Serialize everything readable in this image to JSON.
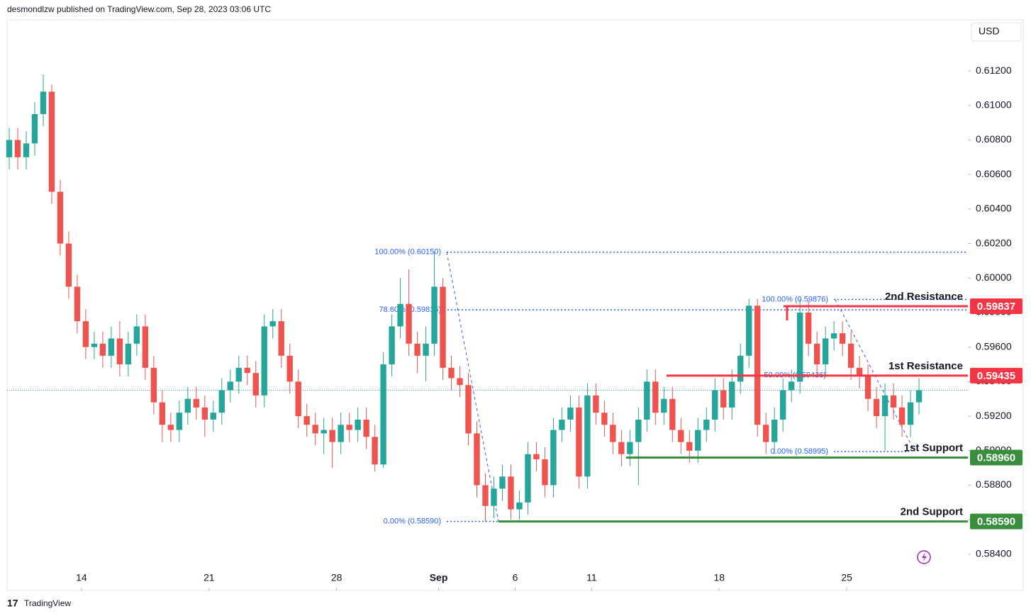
{
  "chart_data": {
    "type": "candlestick",
    "header": "desmondlzw published on TradingView.com, Sep 28, 2023 03:06 UTC",
    "currency": "USD",
    "brand": "TradingView",
    "up_color": "#26a69a",
    "down_color": "#ef5350",
    "xlim": [
      -0.25,
      112.75
    ],
    "xticks": [
      {
        "value": 8.5,
        "label": "14"
      },
      {
        "value": 23.5,
        "label": "21"
      },
      {
        "value": 38.5,
        "label": "28"
      },
      {
        "value": 50.5,
        "label": "Sep"
      },
      {
        "value": 59.5,
        "label": "6"
      },
      {
        "value": 68.5,
        "label": "11"
      },
      {
        "value": 83.5,
        "label": "18"
      },
      {
        "value": 98.5,
        "label": "25"
      }
    ],
    "ylim": [
      0.5819,
      0.61496
    ],
    "yticks": [
      {
        "value": 0.612,
        "label": "0.61200"
      },
      {
        "value": 0.61,
        "label": "0.61000"
      },
      {
        "value": 0.608,
        "label": "0.60800"
      },
      {
        "value": 0.606,
        "label": "0.60600"
      },
      {
        "value": 0.604,
        "label": "0.60400"
      },
      {
        "value": 0.602,
        "label": "0.60200"
      },
      {
        "value": 0.6,
        "label": "0.60000"
      },
      {
        "value": 0.598,
        "label": "0.59800"
      },
      {
        "value": 0.596,
        "label": "0.59600"
      },
      {
        "value": 0.594,
        "label": "0.59400"
      },
      {
        "value": 0.592,
        "label": "0.59200"
      },
      {
        "value": 0.59,
        "label": "0.59000"
      },
      {
        "value": 0.588,
        "label": "0.58800"
      },
      {
        "value": 0.586,
        "label": "0.58600"
      },
      {
        "value": 0.584,
        "label": "0.58400"
      }
    ],
    "last_price": 0.5935,
    "candles": [
      [
        0.607,
        0.6087,
        0.6063,
        0.608
      ],
      [
        0.608,
        0.6087,
        0.6063,
        0.607
      ],
      [
        0.607,
        0.6085,
        0.6063,
        0.6078
      ],
      [
        0.6078,
        0.6102,
        0.6071,
        0.6095
      ],
      [
        0.6095,
        0.6118,
        0.6088,
        0.6108
      ],
      [
        0.6108,
        0.6112,
        0.6043,
        0.605
      ],
      [
        0.605,
        0.6057,
        0.6013,
        0.602
      ],
      [
        0.602,
        0.6027,
        0.5988,
        0.5995
      ],
      [
        0.5995,
        0.6002,
        0.5968,
        0.5975
      ],
      [
        0.5975,
        0.5982,
        0.5953,
        0.596
      ],
      [
        0.596,
        0.5969,
        0.5953,
        0.5962
      ],
      [
        0.5962,
        0.5969,
        0.5948,
        0.5955
      ],
      [
        0.5955,
        0.5972,
        0.5948,
        0.5965
      ],
      [
        0.5965,
        0.5975,
        0.5943,
        0.595
      ],
      [
        0.595,
        0.5969,
        0.5943,
        0.5962
      ],
      [
        0.5962,
        0.5979,
        0.5955,
        0.5972
      ],
      [
        0.5972,
        0.5979,
        0.5941,
        0.5948
      ],
      [
        0.5948,
        0.5955,
        0.5921,
        0.5928
      ],
      [
        0.5928,
        0.5935,
        0.5905,
        0.5915
      ],
      [
        0.5915,
        0.5922,
        0.5905,
        0.5912
      ],
      [
        0.5912,
        0.5929,
        0.5905,
        0.5922
      ],
      [
        0.5922,
        0.5937,
        0.5915,
        0.593
      ],
      [
        0.593,
        0.5937,
        0.5918,
        0.5925
      ],
      [
        0.5925,
        0.5932,
        0.5908,
        0.5918
      ],
      [
        0.5918,
        0.5929,
        0.5911,
        0.5922
      ],
      [
        0.5922,
        0.5942,
        0.5915,
        0.5935
      ],
      [
        0.5935,
        0.5947,
        0.5928,
        0.594
      ],
      [
        0.594,
        0.5955,
        0.5933,
        0.5948
      ],
      [
        0.5948,
        0.5955,
        0.5938,
        0.5945
      ],
      [
        0.5945,
        0.5952,
        0.5925,
        0.5932
      ],
      [
        0.5932,
        0.5979,
        0.5925,
        0.5972
      ],
      [
        0.5972,
        0.5982,
        0.5965,
        0.5975
      ],
      [
        0.5975,
        0.5982,
        0.5948,
        0.5955
      ],
      [
        0.5955,
        0.5962,
        0.5933,
        0.594
      ],
      [
        0.594,
        0.5947,
        0.5913,
        0.592
      ],
      [
        0.592,
        0.5927,
        0.5908,
        0.5915
      ],
      [
        0.5915,
        0.5922,
        0.5903,
        0.591
      ],
      [
        0.591,
        0.5919,
        0.5898,
        0.5912
      ],
      [
        0.5912,
        0.5919,
        0.589,
        0.5905
      ],
      [
        0.5905,
        0.5922,
        0.5898,
        0.5915
      ],
      [
        0.5915,
        0.5922,
        0.5905,
        0.5912
      ],
      [
        0.5912,
        0.5925,
        0.5905,
        0.5918
      ],
      [
        0.5918,
        0.5925,
        0.5901,
        0.5908
      ],
      [
        0.5908,
        0.5915,
        0.5888,
        0.5892
      ],
      [
        0.5892,
        0.5957,
        0.589,
        0.595
      ],
      [
        0.595,
        0.5979,
        0.5943,
        0.5972
      ],
      [
        0.5972,
        0.6,
        0.5965,
        0.5985
      ],
      [
        0.5985,
        0.6005,
        0.5955,
        0.5962
      ],
      [
        0.5962,
        0.5969,
        0.5945,
        0.5955
      ],
      [
        0.5955,
        0.5972,
        0.594,
        0.5962
      ],
      [
        0.5962,
        0.6015,
        0.5955,
        0.5995
      ],
      [
        0.5995,
        0.6,
        0.5941,
        0.5948
      ],
      [
        0.5948,
        0.5955,
        0.5935,
        0.5942
      ],
      [
        0.5942,
        0.5949,
        0.5931,
        0.5938
      ],
      [
        0.5938,
        0.5945,
        0.5903,
        0.591
      ],
      [
        0.591,
        0.5917,
        0.5873,
        0.588
      ],
      [
        0.588,
        0.5887,
        0.5859,
        0.5868
      ],
      [
        0.5868,
        0.5885,
        0.5861,
        0.5878
      ],
      [
        0.5878,
        0.5892,
        0.5871,
        0.5885
      ],
      [
        0.5885,
        0.5892,
        0.586,
        0.5866
      ],
      [
        0.5866,
        0.5877,
        0.586,
        0.587
      ],
      [
        0.587,
        0.5905,
        0.5863,
        0.5898
      ],
      [
        0.5898,
        0.5905,
        0.5888,
        0.5895
      ],
      [
        0.5895,
        0.5902,
        0.5873,
        0.588
      ],
      [
        0.588,
        0.5919,
        0.5873,
        0.5912
      ],
      [
        0.5912,
        0.5925,
        0.5905,
        0.5918
      ],
      [
        0.5918,
        0.5932,
        0.5911,
        0.5925
      ],
      [
        0.5925,
        0.5932,
        0.5878,
        0.5885
      ],
      [
        0.5885,
        0.5939,
        0.5878,
        0.5932
      ],
      [
        0.5932,
        0.5939,
        0.5915,
        0.5922
      ],
      [
        0.5922,
        0.5929,
        0.5908,
        0.5915
      ],
      [
        0.5915,
        0.5922,
        0.5898,
        0.5905
      ],
      [
        0.5905,
        0.5912,
        0.5891,
        0.5898
      ],
      [
        0.5898,
        0.5912,
        0.5891,
        0.5905
      ],
      [
        0.5905,
        0.5925,
        0.588,
        0.5918
      ],
      [
        0.5918,
        0.5947,
        0.5911,
        0.594
      ],
      [
        0.594,
        0.5947,
        0.5915,
        0.5922
      ],
      [
        0.5922,
        0.5937,
        0.5915,
        0.593
      ],
      [
        0.593,
        0.5937,
        0.5905,
        0.5912
      ],
      [
        0.5912,
        0.5919,
        0.5898,
        0.5905
      ],
      [
        0.5905,
        0.5912,
        0.5893,
        0.59
      ],
      [
        0.59,
        0.5919,
        0.5893,
        0.5912
      ],
      [
        0.5912,
        0.5925,
        0.5905,
        0.5918
      ],
      [
        0.5918,
        0.5942,
        0.5911,
        0.5935
      ],
      [
        0.5935,
        0.5942,
        0.5918,
        0.5925
      ],
      [
        0.5925,
        0.5947,
        0.5918,
        0.594
      ],
      [
        0.594,
        0.5962,
        0.5933,
        0.5955
      ],
      [
        0.5955,
        0.5988,
        0.5948,
        0.5984
      ],
      [
        0.5984,
        0.5988,
        0.5908,
        0.5915
      ],
      [
        0.5915,
        0.5922,
        0.5898,
        0.5905
      ],
      [
        0.5905,
        0.5925,
        0.5898,
        0.5918
      ],
      [
        0.5918,
        0.5942,
        0.5911,
        0.5935
      ],
      [
        0.5935,
        0.5947,
        0.5928,
        0.594
      ],
      [
        0.594,
        0.5988,
        0.5933,
        0.598
      ],
      [
        0.598,
        0.5987,
        0.5955,
        0.5962
      ],
      [
        0.5962,
        0.5969,
        0.5943,
        0.595
      ],
      [
        0.595,
        0.5972,
        0.5943,
        0.5965
      ],
      [
        0.5965,
        0.5975,
        0.5958,
        0.5968
      ],
      [
        0.5968,
        0.5975,
        0.5955,
        0.5962
      ],
      [
        0.5962,
        0.5969,
        0.5941,
        0.5948
      ],
      [
        0.5948,
        0.5955,
        0.5936,
        0.5943
      ],
      [
        0.5943,
        0.595,
        0.5923,
        0.593
      ],
      [
        0.593,
        0.5937,
        0.5913,
        0.592
      ],
      [
        0.592,
        0.5939,
        0.59,
        0.5932
      ],
      [
        0.5932,
        0.5939,
        0.5918,
        0.5925
      ],
      [
        0.5925,
        0.5932,
        0.5908,
        0.5915
      ],
      [
        0.5915,
        0.5935,
        0.5908,
        0.5928
      ],
      [
        0.5928,
        0.5942,
        0.5921,
        0.5935
      ]
    ],
    "levels": {
      "names": [
        "2nd Resistance",
        "1st Resistance",
        "1st Support",
        "2nd Support"
      ],
      "values": [
        0.59837,
        0.59435,
        0.5896,
        0.5859
      ],
      "value_labels": [
        "0.59837",
        "0.59435",
        "0.58960",
        "0.58590"
      ],
      "colors": [
        "#f23645",
        "#f23645",
        "#388e3c",
        "#388e3c"
      ]
    },
    "fib_left": {
      "labels": [
        "100.00% (0.60150)",
        "78.60% (0.59816)",
        "0.00% (0.58590)"
      ],
      "values": [
        0.6015,
        0.59816,
        0.5859
      ]
    },
    "fib_right": {
      "labels": [
        "100.00% (0.59876)",
        "50.00% (0.59436)",
        "0.00% (0.58995)"
      ],
      "values": [
        0.59876,
        0.59436,
        0.58995
      ]
    }
  }
}
